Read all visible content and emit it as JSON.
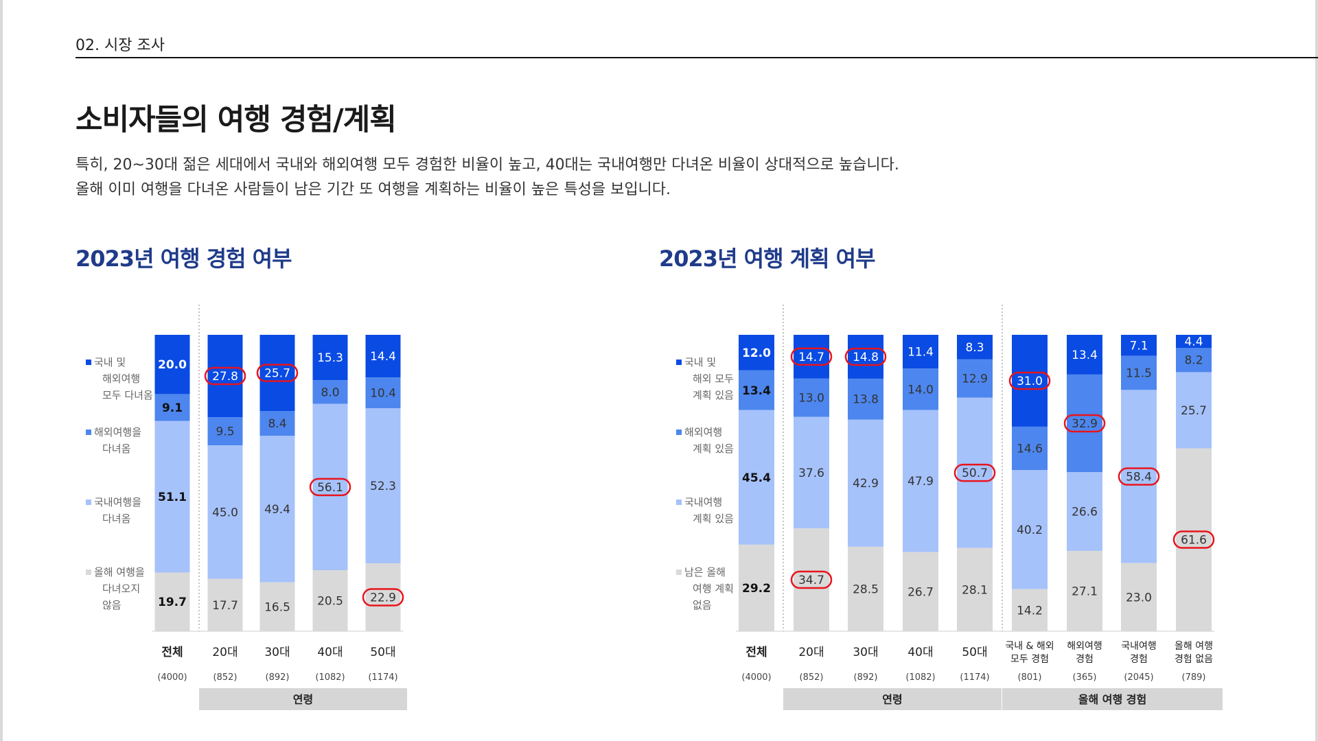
{
  "header": {
    "section": "02. 시장 조사",
    "title": "소비자들의 여행 경험/계획",
    "desc1": "특히, 20~30대 젊은 세대에서 국내와 해외여행 모두 경험한 비율이 높고, 40대는 국내여행만 다녀온 비율이 상대적으로 높습니다.",
    "desc2": "올해 이미 여행을 다녀온 사람들이 남은 기간 또 여행을 계획하는 비율이 높은 특성을 보입니다."
  },
  "colors": {
    "series1": "#0a4be3",
    "series2": "#4d86ee",
    "series3": "#a6c2fb",
    "series4": "#d9d9d9",
    "highlight": "#e8141c",
    "title": "#1f3b8a"
  },
  "chart_data": [
    {
      "type": "bar",
      "stacked": true,
      "title": "2023년 여행 경험 여부",
      "categories": [
        "전체",
        "20대",
        "30대",
        "40대",
        "50대"
      ],
      "sample_sizes": [
        "(4000)",
        "(852)",
        "(892)",
        "(1082)",
        "(1174)"
      ],
      "groups": [
        {
          "label": "연령",
          "categories": [
            "20대",
            "30대",
            "40대",
            "50대"
          ]
        }
      ],
      "series": [
        {
          "name": "국내 및 해외여행 모두 다녀옴",
          "values": [
            20.0,
            27.8,
            25.7,
            15.3,
            14.4
          ]
        },
        {
          "name": "해외여행을 다녀옴",
          "values": [
            9.1,
            9.5,
            8.4,
            8.0,
            10.4
          ]
        },
        {
          "name": "국내여행을 다녀옴",
          "values": [
            51.1,
            45.0,
            49.4,
            56.1,
            52.3
          ]
        },
        {
          "name": "올해 여행을 다녀오지 않음",
          "values": [
            19.7,
            17.7,
            16.5,
            20.5,
            22.9
          ]
        }
      ],
      "highlights": [
        [
          1,
          0
        ],
        [
          2,
          0
        ],
        [
          3,
          2
        ],
        [
          4,
          3
        ]
      ],
      "legend_position": "left"
    },
    {
      "type": "bar",
      "stacked": true,
      "title": "2023년 여행 계획 여부",
      "categories": [
        "전체",
        "20대",
        "30대",
        "40대",
        "50대",
        "국내 & 해외 모두 경험",
        "해외여행 경험",
        "국내여행 경험",
        "올해 여행 경험 없음"
      ],
      "sample_sizes": [
        "(4000)",
        "(852)",
        "(892)",
        "(1082)",
        "(1174)",
        "(801)",
        "(365)",
        "(2045)",
        "(789)"
      ],
      "groups": [
        {
          "label": "연령",
          "categories": [
            "20대",
            "30대",
            "40대",
            "50대"
          ]
        },
        {
          "label": "올해 여행 경험",
          "categories": [
            "국내 & 해외 모두 경험",
            "해외여행 경험",
            "국내여행 경험",
            "올해 여행 경험 없음"
          ]
        }
      ],
      "series": [
        {
          "name": "국내 및 해외 모두 계획 있음",
          "values": [
            12.0,
            14.7,
            14.8,
            11.4,
            8.3,
            31.0,
            13.4,
            7.1,
            4.4
          ]
        },
        {
          "name": "해외여행 계획 있음",
          "values": [
            13.4,
            13.0,
            13.8,
            14.0,
            12.9,
            14.6,
            32.9,
            11.5,
            8.2
          ]
        },
        {
          "name": "국내여행 계획 있음",
          "values": [
            45.4,
            37.6,
            42.9,
            47.9,
            50.7,
            40.2,
            26.6,
            58.4,
            25.7
          ]
        },
        {
          "name": "남은 올해 여행 계획 없음",
          "values": [
            29.2,
            34.7,
            28.5,
            26.7,
            28.1,
            14.2,
            27.1,
            23.0,
            61.6
          ]
        }
      ],
      "highlights": [
        [
          1,
          0
        ],
        [
          2,
          0
        ],
        [
          1,
          3
        ],
        [
          4,
          2
        ],
        [
          5,
          0
        ],
        [
          6,
          1
        ],
        [
          7,
          2
        ],
        [
          8,
          3
        ]
      ],
      "legend_position": "left"
    }
  ]
}
